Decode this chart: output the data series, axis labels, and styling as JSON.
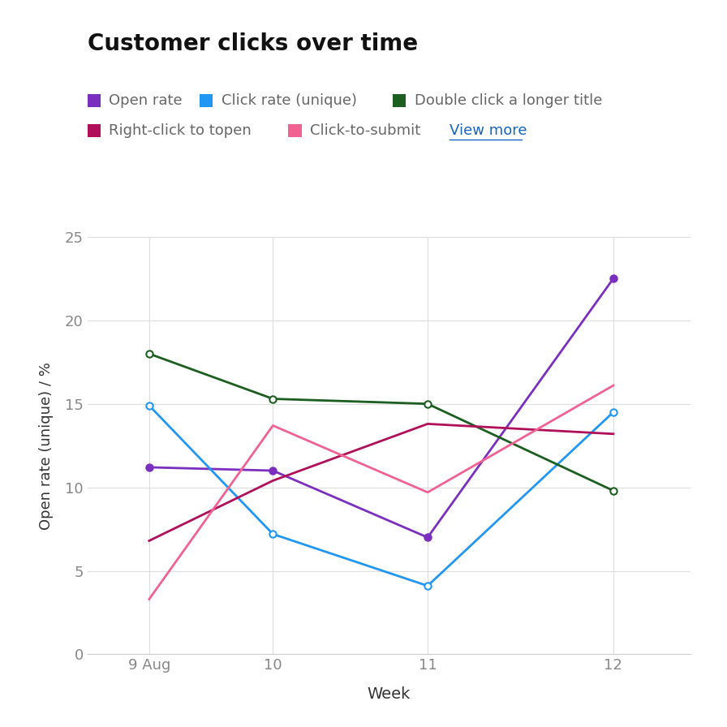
{
  "title": "Customer clicks over time",
  "xlabel": "Week",
  "ylabel": "Open rate (unique) / %",
  "x_ticks": [
    9,
    9.8,
    10.8,
    12
  ],
  "x_tick_labels": [
    "9 Aug",
    "10",
    "11",
    "12"
  ],
  "ylim": [
    0,
    25
  ],
  "yticks": [
    0,
    5,
    10,
    15,
    20,
    25
  ],
  "background": "#ffffff",
  "series": [
    {
      "label": "Open rate",
      "color": "#7b2fbe",
      "has_marker": true,
      "marker_facecolor": "#7b2fbe",
      "y": [
        11.2,
        11.0,
        7.0,
        22.5
      ]
    },
    {
      "label": "Click rate (unique)",
      "color": "#2196f3",
      "has_marker": true,
      "marker_facecolor": "#ffffff",
      "y": [
        14.9,
        7.2,
        4.1,
        14.5
      ]
    },
    {
      "label": "Double click a longer title",
      "color": "#1b5e20",
      "has_marker": true,
      "marker_facecolor": "#ffffff",
      "y": [
        18.0,
        15.3,
        15.0,
        9.8
      ]
    },
    {
      "label": "Right-click to topen",
      "color": "#b0105a",
      "has_marker": false,
      "marker_facecolor": "#b0105a",
      "y": [
        6.8,
        10.4,
        13.8,
        13.2
      ]
    },
    {
      "label": "Click-to-submit",
      "color": "#f06292",
      "has_marker": false,
      "marker_facecolor": "#f06292",
      "y": [
        3.3,
        13.7,
        9.7,
        16.1
      ]
    }
  ],
  "legend_row1": [
    {
      "label": "Open rate",
      "color": "#7b2fbe"
    },
    {
      "label": "Click rate (unique)",
      "color": "#2196f3"
    },
    {
      "label": "Double click a longer title",
      "color": "#1b5e20"
    }
  ],
  "legend_row2": [
    {
      "label": "Right-click to topen",
      "color": "#b0105a"
    },
    {
      "label": "Click-to-submit",
      "color": "#f06292"
    }
  ],
  "view_more_text": "View more",
  "view_more_color": "#1565c0",
  "title_fontsize": 20,
  "tick_fontsize": 13,
  "label_fontsize": 14,
  "legend_fontsize": 13
}
